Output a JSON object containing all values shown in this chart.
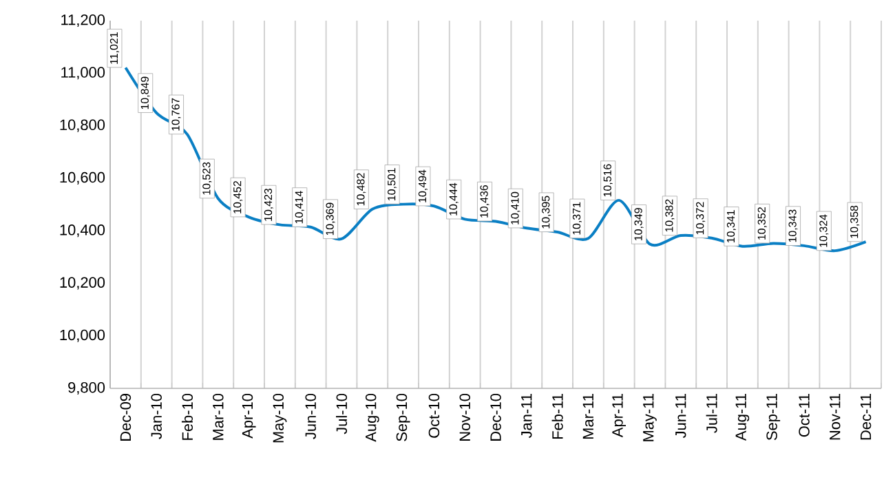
{
  "chart_data": {
    "type": "line",
    "categories": [
      "Dec-09",
      "Jan-10",
      "Feb-10",
      "Mar-10",
      "Apr-10",
      "May-10",
      "Jun-10",
      "Jul-10",
      "Aug-10",
      "Sep-10",
      "Oct-10",
      "Nov-10",
      "Dec-10",
      "Jan-11",
      "Feb-11",
      "Mar-11",
      "Apr-11",
      "May-11",
      "Jun-11",
      "Jul-11",
      "Aug-11",
      "Sep-11",
      "Oct-11",
      "Nov-11",
      "Dec-11"
    ],
    "series": [
      {
        "color": "#0a7fc4",
        "values": [
          11021,
          10849,
          10767,
          10523,
          10452,
          10423,
          10414,
          10369,
          10482,
          10501,
          10494,
          10444,
          10436,
          10410,
          10395,
          10371,
          10516,
          10349,
          10382,
          10372,
          10341,
          10352,
          10343,
          10324,
          10358
        ],
        "value_labels": [
          "11,021",
          "10,849",
          "10,767",
          "10,523",
          "10,452",
          "10,423",
          "10,414",
          "10,369",
          "10,482",
          "10,501",
          "10,494",
          "10,444",
          "10,436",
          "10,410",
          "10,395",
          "10,371",
          "10,516",
          "10,349",
          "10,382",
          "10,372",
          "10,341",
          "10,352",
          "10,343",
          "10,324",
          "10,358"
        ]
      }
    ],
    "ylim": [
      9800,
      11200
    ],
    "yticks": [
      {
        "value": 9800,
        "label": "9,800"
      },
      {
        "value": 10000,
        "label": "10,000"
      },
      {
        "value": 10200,
        "label": "10,200"
      },
      {
        "value": 10400,
        "label": "10,400"
      },
      {
        "value": 10600,
        "label": "10,600"
      },
      {
        "value": 10800,
        "label": "10,800"
      },
      {
        "value": 11000,
        "label": "11,000"
      },
      {
        "value": 11200,
        "label": "11,200"
      }
    ],
    "grid": "x",
    "marker": "none",
    "line_style": "solid"
  }
}
